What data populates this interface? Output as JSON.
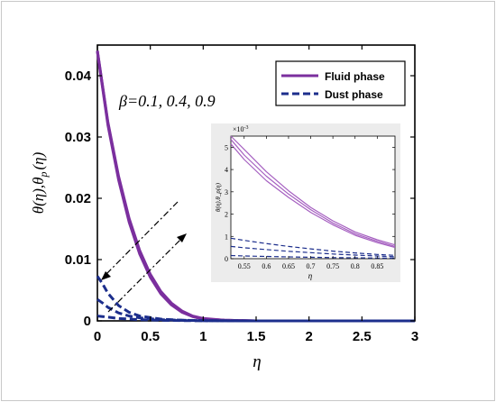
{
  "chart_data": [
    {
      "type": "line",
      "title": "",
      "xlabel": "η",
      "ylabel_main": "θ(η),θ",
      "ylabel_sub": "p",
      "ylabel_tail": "(η)",
      "xlim": [
        0,
        3
      ],
      "ylim": [
        0,
        0.045
      ],
      "x_ticks": [
        "0",
        "0.5",
        "1",
        "1.5",
        "2",
        "2.5",
        "3"
      ],
      "y_ticks": [
        "0",
        "0.01",
        "0.02",
        "0.03",
        "0.04"
      ],
      "x_tick_values": [
        0,
        0.5,
        1,
        1.5,
        2,
        2.5,
        3
      ],
      "y_tick_values": [
        0,
        0.01,
        0.02,
        0.03,
        0.04
      ],
      "grid": false,
      "legend_position": "top-right",
      "legend": [
        {
          "label": "Fluid phase",
          "color": "#7B2F9E",
          "style": "solid"
        },
        {
          "label": "Dust phase",
          "color": "#1C2E8C",
          "style": "dashed"
        }
      ],
      "annotation": "β=0.1, 0.4, 0.9",
      "series": [
        {
          "group": "fluid",
          "color": "#7B2F9E",
          "style": "solid",
          "x": [
            0,
            0.1,
            0.2,
            0.3,
            0.4,
            0.5,
            0.6,
            0.7,
            0.8,
            0.9,
            1.0,
            1.2,
            1.5,
            2,
            2.5,
            3
          ],
          "y": [
            0.0441,
            0.0324,
            0.0236,
            0.0167,
            0.0115,
            0.0076,
            0.0048,
            0.0029,
            0.0016,
            0.0008,
            0.0004,
            0.0001,
            0.0,
            0.0,
            0.0,
            0.0
          ]
        },
        {
          "group": "fluid",
          "color": "#7B2F9E",
          "style": "solid",
          "x": [
            0,
            0.1,
            0.2,
            0.3,
            0.4,
            0.5,
            0.6,
            0.7,
            0.8,
            0.9,
            1.0,
            1.2,
            1.5,
            2,
            2.5,
            3
          ],
          "y": [
            0.044,
            0.0322,
            0.0233,
            0.0164,
            0.0112,
            0.0073,
            0.0046,
            0.0027,
            0.0015,
            0.0007,
            0.0003,
            0.0001,
            0.0,
            0.0,
            0.0,
            0.0
          ]
        },
        {
          "group": "fluid",
          "color": "#7B2F9E",
          "style": "solid",
          "x": [
            0,
            0.1,
            0.2,
            0.3,
            0.4,
            0.5,
            0.6,
            0.7,
            0.8,
            0.9,
            1.0,
            1.2,
            1.5,
            2,
            2.5,
            3
          ],
          "y": [
            0.0439,
            0.0319,
            0.023,
            0.0161,
            0.0109,
            0.0071,
            0.0044,
            0.0026,
            0.0014,
            0.0007,
            0.0003,
            0.0001,
            0.0,
            0.0,
            0.0,
            0.0
          ]
        },
        {
          "group": "dust",
          "color": "#1C2E8C",
          "style": "dashed",
          "x": [
            0,
            0.05,
            0.1,
            0.2,
            0.3,
            0.4,
            0.6,
            0.8,
            1.0,
            1.5,
            2,
            2.5,
            3
          ],
          "y": [
            0.0073,
            0.006,
            0.0045,
            0.0025,
            0.0014,
            0.0008,
            0.0003,
            0.0001,
            5e-05,
            0.0,
            0.0,
            0.0,
            0.0
          ]
        },
        {
          "group": "dust",
          "color": "#1C2E8C",
          "style": "dashed",
          "x": [
            0,
            0.05,
            0.1,
            0.2,
            0.3,
            0.4,
            0.6,
            0.8,
            1.0,
            1.5,
            2,
            2.5,
            3
          ],
          "y": [
            0.0035,
            0.0029,
            0.0022,
            0.0013,
            0.0008,
            0.0005,
            0.0002,
            0.0001,
            3e-05,
            0.0,
            0.0,
            0.0,
            0.0
          ]
        },
        {
          "group": "dust",
          "color": "#1C2E8C",
          "style": "dashed",
          "x": [
            0,
            0.05,
            0.1,
            0.2,
            0.3,
            0.4,
            0.6,
            0.8,
            1.0,
            1.5,
            2,
            2.5,
            3
          ],
          "y": [
            0.0008,
            0.0007,
            0.0006,
            0.0004,
            0.0003,
            0.0002,
            0.0001,
            5e-05,
            2e-05,
            0.0,
            0.0,
            0.0,
            0.0
          ]
        }
      ]
    },
    {
      "type": "line",
      "title": "",
      "xlabel": "η",
      "ylabel": "θ(η),θ_p(η)",
      "exponent_label": "×10",
      "exponent_power": "-3",
      "xlim": [
        0.52,
        0.89
      ],
      "ylim": [
        0,
        5.5
      ],
      "x_ticks": [
        "0.55",
        "0.6",
        "0.65",
        "0.7",
        "0.75",
        "0.8",
        "0.85"
      ],
      "y_ticks": [
        "0",
        "1",
        "2",
        "3",
        "4",
        "5"
      ],
      "x_tick_values": [
        0.55,
        0.6,
        0.65,
        0.7,
        0.75,
        0.8,
        0.85
      ],
      "y_tick_values": [
        0,
        1,
        2,
        3,
        4,
        5
      ],
      "grid": false,
      "series": [
        {
          "group": "fluid",
          "color": "#A55FC0",
          "style": "solid",
          "x": [
            0.52,
            0.55,
            0.6,
            0.65,
            0.7,
            0.75,
            0.8,
            0.85,
            0.89
          ],
          "y": [
            5.6,
            4.9,
            3.9,
            3.05,
            2.3,
            1.7,
            1.2,
            0.85,
            0.62
          ]
        },
        {
          "group": "fluid",
          "color": "#A55FC0",
          "style": "solid",
          "x": [
            0.52,
            0.55,
            0.6,
            0.65,
            0.7,
            0.75,
            0.8,
            0.85,
            0.89
          ],
          "y": [
            5.35,
            4.65,
            3.7,
            2.9,
            2.2,
            1.6,
            1.12,
            0.78,
            0.55
          ]
        },
        {
          "group": "fluid",
          "color": "#A55FC0",
          "style": "solid",
          "x": [
            0.52,
            0.55,
            0.6,
            0.65,
            0.7,
            0.75,
            0.8,
            0.85,
            0.89
          ],
          "y": [
            5.15,
            4.45,
            3.5,
            2.75,
            2.08,
            1.52,
            1.05,
            0.72,
            0.5
          ]
        },
        {
          "group": "dust",
          "color": "#1C2E8C",
          "style": "dashed",
          "x": [
            0.52,
            0.55,
            0.6,
            0.65,
            0.7,
            0.75,
            0.8,
            0.85,
            0.89
          ],
          "y": [
            0.92,
            0.82,
            0.68,
            0.55,
            0.44,
            0.34,
            0.26,
            0.19,
            0.15
          ]
        },
        {
          "group": "dust",
          "color": "#1C2E8C",
          "style": "dashed",
          "x": [
            0.52,
            0.55,
            0.6,
            0.65,
            0.7,
            0.75,
            0.8,
            0.85,
            0.89
          ],
          "y": [
            0.55,
            0.49,
            0.41,
            0.33,
            0.27,
            0.21,
            0.16,
            0.12,
            0.09
          ]
        },
        {
          "group": "dust",
          "color": "#1C2E8C",
          "style": "dashed",
          "x": [
            0.52,
            0.55,
            0.6,
            0.65,
            0.7,
            0.75,
            0.8,
            0.85,
            0.89
          ],
          "y": [
            0.14,
            0.12,
            0.1,
            0.08,
            0.065,
            0.05,
            0.04,
            0.03,
            0.025
          ]
        }
      ]
    }
  ]
}
